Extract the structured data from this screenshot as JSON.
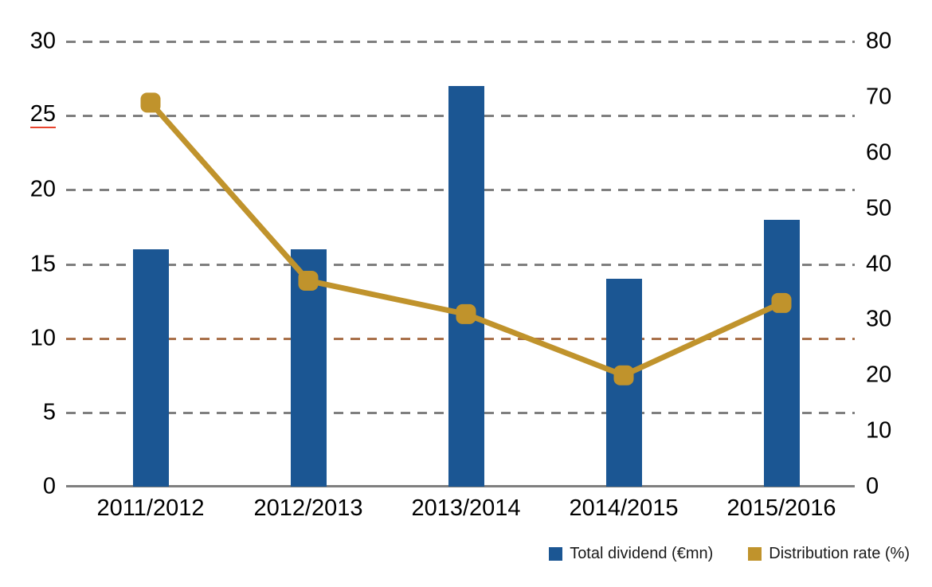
{
  "chart_data": {
    "type": "bar",
    "subtype": "combo-bar-line-dual-axis",
    "title": "",
    "categories": [
      "2011/2012",
      "2012/2013",
      "2013/2014",
      "2014/2015",
      "2015/2016"
    ],
    "series": [
      {
        "name": "Total dividend (€mn)",
        "type": "bar",
        "axis": "left",
        "color": "#1b5693",
        "values": [
          16,
          16,
          27,
          14,
          18
        ]
      },
      {
        "name": "Distribution rate (%)",
        "type": "line",
        "axis": "right",
        "color": "#c0932c",
        "marker": "rounded-square",
        "values": [
          69,
          37,
          31,
          20,
          33
        ]
      }
    ],
    "left_axis": {
      "range": [
        0,
        30
      ],
      "ticks": [
        "0",
        "5",
        "10",
        "15",
        "20",
        "25",
        "30"
      ],
      "underlined_tick": "25",
      "underline_color": "#e8442e"
    },
    "right_axis": {
      "range": [
        0,
        80
      ],
      "ticks": [
        "0",
        "10",
        "20",
        "30",
        "40",
        "50",
        "60",
        "70",
        "80"
      ]
    },
    "grid": {
      "on": true,
      "style": "dashed",
      "color": "#7f7f7f",
      "highlight_value": 10,
      "highlight_color": "#a9714b",
      "axis_line_color": "#7f7f7f"
    },
    "legend": {
      "position": "bottom-right",
      "items": [
        {
          "label": "Total dividend (€mn)",
          "color": "#1b5693",
          "shape": "square"
        },
        {
          "label": "Distribution rate (%)",
          "color": "#c0932c",
          "shape": "square"
        }
      ]
    }
  }
}
